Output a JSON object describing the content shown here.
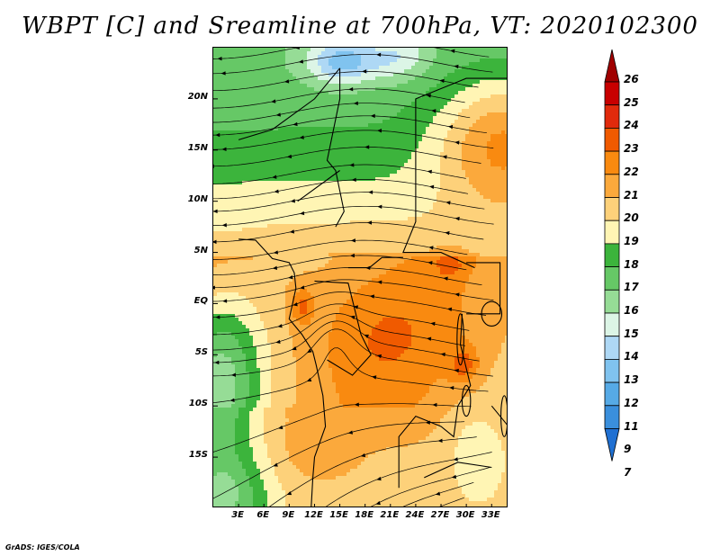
{
  "title": "WBPT [C] and Sreamline at 700hPa, VT: 2020102300",
  "map": {
    "variable": "Wet-bulb potential temperature",
    "units": "C",
    "level": "700hPa",
    "valid_time": "2020102300",
    "lon_range": [
      0,
      35
    ],
    "lat_range": [
      -20,
      25
    ],
    "lat_ticks": [
      {
        "value": 20,
        "label": "20N"
      },
      {
        "value": 15,
        "label": "15N"
      },
      {
        "value": 10,
        "label": "10N"
      },
      {
        "value": 5,
        "label": "5N"
      },
      {
        "value": 0,
        "label": "EQ"
      },
      {
        "value": -5,
        "label": "5S"
      },
      {
        "value": -10,
        "label": "10S"
      },
      {
        "value": -15,
        "label": "15S"
      }
    ],
    "lon_ticks": [
      {
        "value": 3,
        "label": "3E"
      },
      {
        "value": 6,
        "label": "6E"
      },
      {
        "value": 9,
        "label": "9E"
      },
      {
        "value": 12,
        "label": "12E"
      },
      {
        "value": 15,
        "label": "15E"
      },
      {
        "value": 18,
        "label": "18E"
      },
      {
        "value": 21,
        "label": "21E"
      },
      {
        "value": 24,
        "label": "24E"
      },
      {
        "value": 27,
        "label": "27E"
      },
      {
        "value": 30,
        "label": "30E"
      },
      {
        "value": 33,
        "label": "33E"
      }
    ]
  },
  "colorbar": {
    "labels": [
      "26",
      "25",
      "24",
      "23",
      "22",
      "21",
      "20",
      "19",
      "18",
      "17",
      "16",
      "15",
      "14",
      "13",
      "12",
      "11",
      "9",
      "7"
    ],
    "colors": [
      "#a00000",
      "#c80000",
      "#e12a0c",
      "#f05a00",
      "#f98a10",
      "#fba93c",
      "#fdd17a",
      "#fff5b4",
      "#3cb43c",
      "#66c866",
      "#96dc96",
      "#dcf5e6",
      "#aed8f5",
      "#80c3ef",
      "#56aae6",
      "#3a8fdc",
      "#2070d2"
    ]
  },
  "footer": {
    "credit": "GrADS: IGES/COLA"
  }
}
